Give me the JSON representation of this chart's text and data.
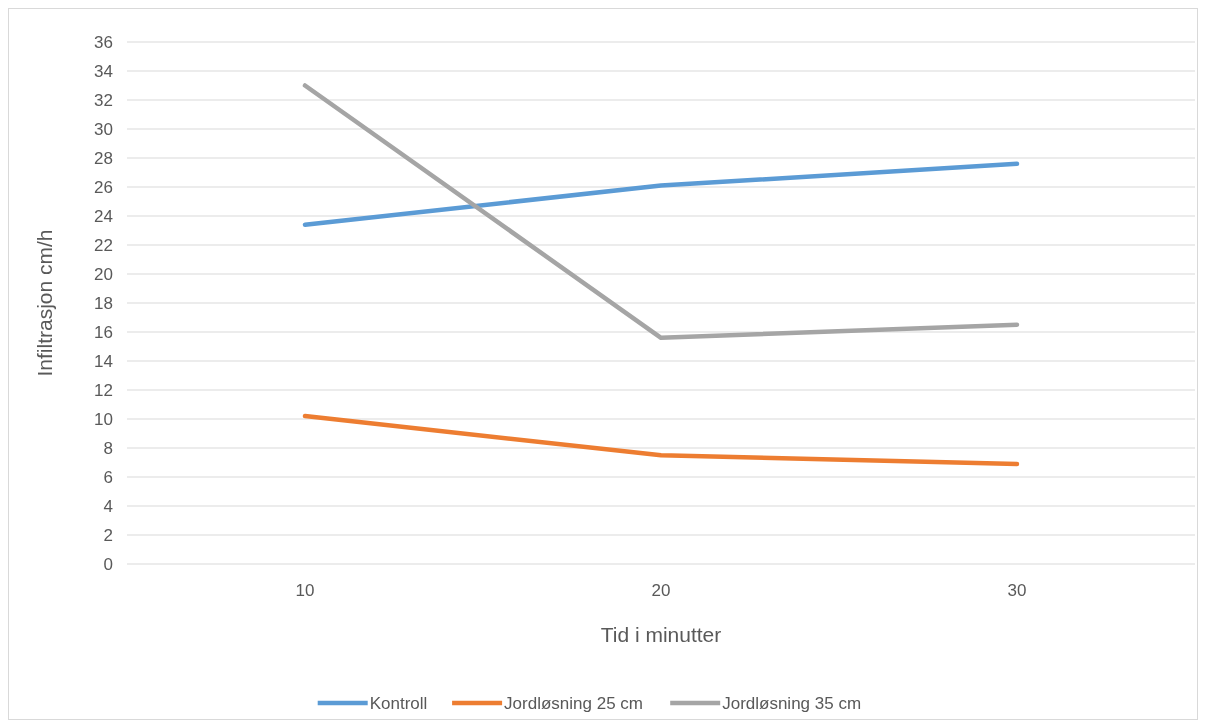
{
  "chart_data": {
    "type": "line",
    "xlabel": "Tid i minutter",
    "ylabel": "Infiltrasjon cm/h",
    "categories": [
      "10",
      "20",
      "30"
    ],
    "series": [
      {
        "name": "Kontroll",
        "color": "#5b9bd5",
        "values": [
          23.4,
          26.1,
          27.6
        ]
      },
      {
        "name": "Jordløsning 25 cm",
        "color": "#ed7d31",
        "values": [
          10.2,
          7.5,
          6.9
        ]
      },
      {
        "name": "Jordløsning 35 cm",
        "color": "#a5a5a5",
        "values": [
          33.0,
          15.6,
          16.5
        ]
      }
    ],
    "ylim": [
      0,
      36
    ],
    "yticks": [
      0,
      2,
      4,
      6,
      8,
      10,
      12,
      14,
      16,
      18,
      20,
      22,
      24,
      26,
      28,
      30,
      32,
      34,
      36
    ],
    "grid": "y",
    "legend": "bottom",
    "marker": "none",
    "line_style": "solid"
  }
}
